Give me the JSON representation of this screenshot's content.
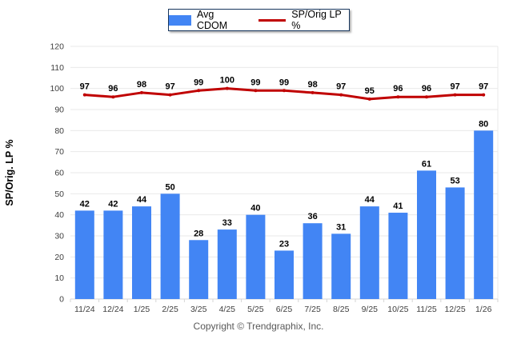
{
  "chart_data": {
    "type": "bar",
    "categories": [
      "11/24",
      "12/24",
      "1/25",
      "2/25",
      "3/25",
      "4/25",
      "5/25",
      "6/25",
      "7/25",
      "8/25",
      "9/25",
      "10/25",
      "11/25",
      "12/25",
      "1/26"
    ],
    "series": [
      {
        "name": "Avg CDOM",
        "type": "bar",
        "color": "#4285f4",
        "values": [
          42,
          42,
          44,
          50,
          28,
          33,
          40,
          23,
          36,
          31,
          44,
          41,
          61,
          53,
          80
        ]
      },
      {
        "name": "SP/Orig LP %",
        "type": "line",
        "color": "#c00000",
        "values": [
          97,
          96,
          98,
          97,
          99,
          100,
          99,
          99,
          98,
          97,
          95,
          96,
          96,
          97,
          97
        ]
      }
    ],
    "title": "",
    "xlabel": "",
    "ylabel": "SP/Orig. LP %",
    "ylim": [
      0,
      120
    ],
    "ytick_step": 10,
    "grid": true,
    "legend_position": "top-center",
    "colors": {
      "gridline": "#e9e9e9",
      "axis_line": "#d6d6d6",
      "tick_label": "#404040",
      "value_label": "#000000",
      "legend_border": "#17365d"
    }
  },
  "footer": {
    "copyright": "Copyright © Trendgraphix, Inc."
  }
}
